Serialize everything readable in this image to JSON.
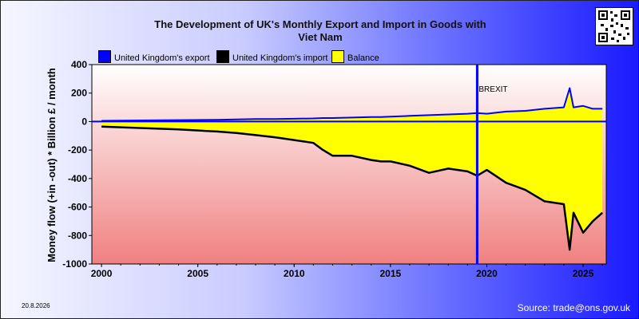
{
  "chart_data": {
    "type": "area",
    "title_line1": "The Development of UK's Monthly Export and Import in Goods with",
    "title_line2": "Viet Nam",
    "ylabel": "Money flow (+in -out) * Billion £ / month",
    "xlabel": "",
    "x_ticks": [
      "2000",
      "2005",
      "2010",
      "2015",
      "2020",
      "2025"
    ],
    "y_ticks": [
      "400",
      "200",
      "0",
      "-200",
      "-400",
      "-600",
      "-800",
      "-1000"
    ],
    "xlim": [
      1999.5,
      2026.2
    ],
    "ylim": [
      -1000,
      400
    ],
    "grid": false,
    "legend_position": "top",
    "annotation": {
      "label": "BREXIT",
      "x": 2019.5
    },
    "x": [
      2000,
      2002,
      2004,
      2006,
      2007,
      2008,
      2009,
      2010,
      2011,
      2011.5,
      2012,
      2013,
      2014,
      2014.5,
      2015,
      2016,
      2017,
      2018,
      2019,
      2019.5,
      2020,
      2021,
      2022,
      2023,
      2024,
      2024.3,
      2024.5,
      2025,
      2025.5,
      2026
    ],
    "series": [
      {
        "name": "United Kingdom's export",
        "color": "#0000ff",
        "values": [
          5,
          8,
          10,
          12,
          15,
          18,
          18,
          20,
          22,
          25,
          25,
          28,
          32,
          32,
          35,
          40,
          45,
          50,
          55,
          60,
          55,
          70,
          75,
          90,
          100,
          235,
          100,
          110,
          90,
          90
        ]
      },
      {
        "name": "United Kingdom's import",
        "color": "#000000",
        "values": [
          -35,
          -45,
          -55,
          -70,
          -80,
          -95,
          -110,
          -130,
          -150,
          -200,
          -240,
          -240,
          -270,
          -280,
          -280,
          -310,
          -360,
          -330,
          -350,
          -380,
          -340,
          -430,
          -480,
          -560,
          -580,
          -900,
          -640,
          -780,
          -700,
          -640
        ]
      },
      {
        "name": "Balance",
        "color": "#ffff00",
        "values": [
          -30,
          -37,
          -45,
          -58,
          -65,
          -77,
          -92,
          -110,
          -128,
          -175,
          -215,
          -212,
          -238,
          -248,
          -245,
          -270,
          -315,
          -280,
          -295,
          -320,
          -285,
          -360,
          -405,
          -470,
          -480,
          -665,
          -540,
          -670,
          -610,
          -550
        ]
      }
    ]
  },
  "legend": {
    "export_label": "United Kingdom's export",
    "import_label": "United Kingdom's import",
    "balance_label": "Balance",
    "export_color": "#0000ff",
    "import_color": "#000000",
    "balance_color": "#ffff00"
  },
  "footer": {
    "date": "20.8.2026",
    "source": "Source: trade@ons.gov.uk"
  }
}
